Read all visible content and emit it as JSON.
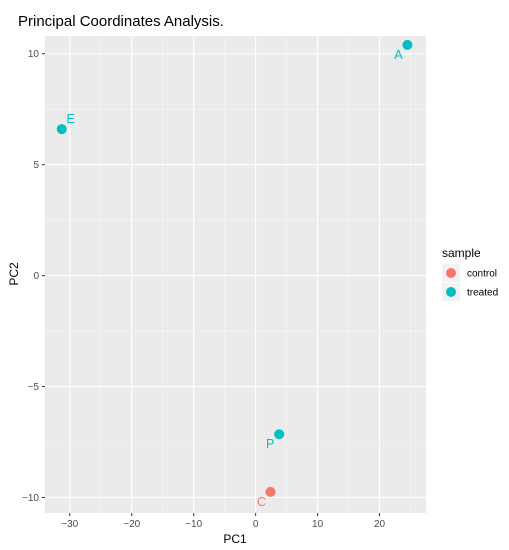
{
  "chart_data": {
    "type": "scatter",
    "title": "Principal Coordinates Analysis.",
    "xlabel": "PC1",
    "ylabel": "PC2",
    "xlim": [
      -34,
      27.5
    ],
    "ylim": [
      -10.7,
      10.8
    ],
    "x_ticks": [
      -30,
      -20,
      -10,
      0,
      10,
      20
    ],
    "x_tick_labels": [
      "−30",
      "−20",
      "−10",
      "0",
      "10",
      "20"
    ],
    "y_ticks": [
      -10,
      -5,
      0,
      5,
      10
    ],
    "y_tick_labels": [
      "−10",
      "−5",
      "0",
      "5",
      "10"
    ],
    "grid": true,
    "legend": {
      "title": "sample",
      "placement": "right",
      "entries": [
        {
          "name": "control",
          "color": "#F8766D"
        },
        {
          "name": "treated",
          "color": "#00BFC4"
        }
      ]
    },
    "points": [
      {
        "label": "A",
        "group": "treated",
        "x": 24.5,
        "y": 10.4
      },
      {
        "label": "E",
        "group": "treated",
        "x": -31.3,
        "y": 6.6
      },
      {
        "label": "P",
        "group": "treated",
        "x": 3.8,
        "y": -7.15
      },
      {
        "label": "C",
        "group": "control",
        "x": 2.4,
        "y": -9.75
      }
    ],
    "colors": {
      "control": "#F8766D",
      "treated": "#00BFC4"
    }
  }
}
